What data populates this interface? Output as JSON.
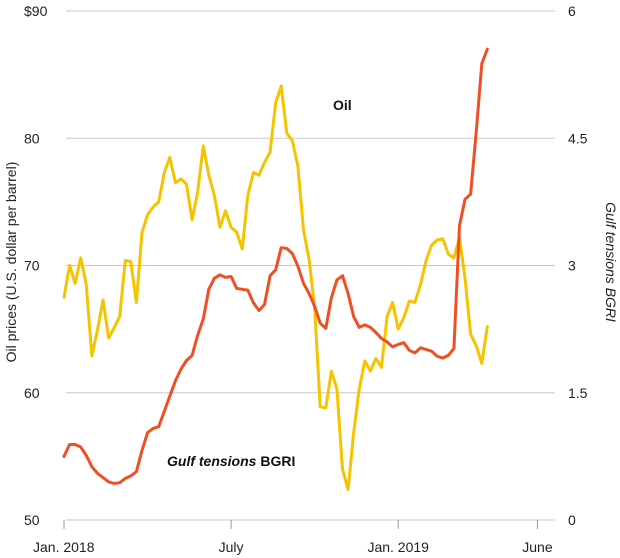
{
  "chart_data": {
    "type": "line",
    "x_unit": "month (1 = Jan. 2018)",
    "x_ticks": [
      {
        "x": 1,
        "label": "Jan. 2018"
      },
      {
        "x": 7,
        "label": "July"
      },
      {
        "x": 13,
        "label": "Jan. 2019"
      },
      {
        "x": 18,
        "label": "June"
      }
    ],
    "x_range": [
      1,
      18.3
    ],
    "left_axis": {
      "label": "Oil prices (U.S. dollar per barrel)",
      "range": [
        50,
        90
      ],
      "ticks": [
        {
          "value": 90,
          "label": "$90"
        },
        {
          "value": 80,
          "label": "80"
        },
        {
          "value": 70,
          "label": "70"
        },
        {
          "value": 60,
          "label": "60"
        },
        {
          "value": 50,
          "label": "50"
        }
      ]
    },
    "right_axis": {
      "label": "Gulf tensions BGRI",
      "range": [
        0,
        6
      ],
      "ticks": [
        {
          "value": 6,
          "label": "6"
        },
        {
          "value": 4.5,
          "label": "4.5"
        },
        {
          "value": 3,
          "label": "3"
        },
        {
          "value": 1.5,
          "label": "1.5"
        },
        {
          "value": 0,
          "label": "0"
        }
      ]
    },
    "grid": true,
    "series": [
      {
        "name": "Oil",
        "axis": "left",
        "color": "#f5c400",
        "points": [
          [
            1.0,
            67.5
          ],
          [
            1.2,
            70.0
          ],
          [
            1.4,
            68.6
          ],
          [
            1.6,
            70.6
          ],
          [
            1.8,
            68.5
          ],
          [
            2.0,
            62.9
          ],
          [
            2.2,
            64.9
          ],
          [
            2.4,
            67.3
          ],
          [
            2.6,
            64.3
          ],
          [
            2.8,
            65.1
          ],
          [
            3.0,
            66.0
          ],
          [
            3.2,
            70.4
          ],
          [
            3.4,
            70.3
          ],
          [
            3.6,
            67.1
          ],
          [
            3.8,
            72.6
          ],
          [
            4.0,
            74.0
          ],
          [
            4.2,
            74.6
          ],
          [
            4.4,
            75.0
          ],
          [
            4.6,
            77.3
          ],
          [
            4.8,
            78.5
          ],
          [
            5.0,
            76.5
          ],
          [
            5.2,
            76.8
          ],
          [
            5.4,
            76.4
          ],
          [
            5.6,
            73.6
          ],
          [
            5.8,
            75.8
          ],
          [
            6.0,
            79.4
          ],
          [
            6.2,
            77.1
          ],
          [
            6.4,
            75.5
          ],
          [
            6.6,
            73.0
          ],
          [
            6.8,
            74.3
          ],
          [
            7.0,
            73.0
          ],
          [
            7.2,
            72.6
          ],
          [
            7.4,
            71.3
          ],
          [
            7.6,
            75.5
          ],
          [
            7.8,
            77.3
          ],
          [
            8.0,
            77.1
          ],
          [
            8.2,
            78.1
          ],
          [
            8.4,
            78.9
          ],
          [
            8.6,
            82.8
          ],
          [
            8.8,
            84.1
          ],
          [
            9.0,
            80.4
          ],
          [
            9.2,
            79.8
          ],
          [
            9.4,
            77.8
          ],
          [
            9.6,
            72.8
          ],
          [
            9.8,
            70.5
          ],
          [
            10.0,
            66.7
          ],
          [
            10.2,
            58.9
          ],
          [
            10.4,
            58.8
          ],
          [
            10.6,
            61.7
          ],
          [
            10.8,
            60.3
          ],
          [
            11.0,
            54.0
          ],
          [
            11.2,
            52.4
          ],
          [
            11.4,
            56.8
          ],
          [
            11.6,
            60.3
          ],
          [
            11.8,
            62.5
          ],
          [
            12.0,
            61.7
          ],
          [
            12.2,
            62.7
          ],
          [
            12.4,
            62.0
          ],
          [
            12.6,
            66.0
          ],
          [
            12.8,
            67.1
          ],
          [
            13.0,
            65.0
          ],
          [
            13.2,
            65.9
          ],
          [
            13.4,
            67.2
          ],
          [
            13.6,
            67.1
          ],
          [
            13.8,
            68.5
          ],
          [
            14.0,
            70.4
          ],
          [
            14.2,
            71.6
          ],
          [
            14.4,
            72.0
          ],
          [
            14.6,
            72.1
          ],
          [
            14.8,
            70.9
          ],
          [
            15.0,
            70.6
          ],
          [
            15.2,
            72.2
          ],
          [
            15.4,
            69.0
          ],
          [
            15.6,
            64.6
          ],
          [
            15.8,
            63.7
          ],
          [
            16.0,
            62.3
          ],
          [
            16.2,
            65.2
          ]
        ]
      },
      {
        "name": "Gulf tensions BGRI",
        "axis": "right",
        "color": "#f04e23",
        "points": [
          [
            1.0,
            0.75
          ],
          [
            1.2,
            0.89
          ],
          [
            1.4,
            0.89
          ],
          [
            1.6,
            0.86
          ],
          [
            1.8,
            0.76
          ],
          [
            2.0,
            0.63
          ],
          [
            2.2,
            0.55
          ],
          [
            2.4,
            0.5
          ],
          [
            2.6,
            0.45
          ],
          [
            2.8,
            0.43
          ],
          [
            3.0,
            0.44
          ],
          [
            3.2,
            0.49
          ],
          [
            3.4,
            0.52
          ],
          [
            3.6,
            0.57
          ],
          [
            3.8,
            0.82
          ],
          [
            4.0,
            1.03
          ],
          [
            4.2,
            1.08
          ],
          [
            4.4,
            1.1
          ],
          [
            4.6,
            1.28
          ],
          [
            4.8,
            1.46
          ],
          [
            5.0,
            1.64
          ],
          [
            5.2,
            1.78
          ],
          [
            5.4,
            1.88
          ],
          [
            5.6,
            1.94
          ],
          [
            5.8,
            2.18
          ],
          [
            6.0,
            2.37
          ],
          [
            6.2,
            2.72
          ],
          [
            6.4,
            2.85
          ],
          [
            6.6,
            2.89
          ],
          [
            6.8,
            2.86
          ],
          [
            7.0,
            2.87
          ],
          [
            7.2,
            2.73
          ],
          [
            7.4,
            2.72
          ],
          [
            7.6,
            2.71
          ],
          [
            7.8,
            2.56
          ],
          [
            8.0,
            2.47
          ],
          [
            8.2,
            2.54
          ],
          [
            8.4,
            2.88
          ],
          [
            8.6,
            2.95
          ],
          [
            8.8,
            3.21
          ],
          [
            9.0,
            3.2
          ],
          [
            9.2,
            3.14
          ],
          [
            9.4,
            2.99
          ],
          [
            9.6,
            2.79
          ],
          [
            9.8,
            2.67
          ],
          [
            10.0,
            2.52
          ],
          [
            10.2,
            2.32
          ],
          [
            10.4,
            2.26
          ],
          [
            10.6,
            2.62
          ],
          [
            10.8,
            2.83
          ],
          [
            11.0,
            2.88
          ],
          [
            11.2,
            2.67
          ],
          [
            11.4,
            2.4
          ],
          [
            11.6,
            2.27
          ],
          [
            11.8,
            2.3
          ],
          [
            12.0,
            2.27
          ],
          [
            12.2,
            2.21
          ],
          [
            12.4,
            2.14
          ],
          [
            12.6,
            2.1
          ],
          [
            12.8,
            2.04
          ],
          [
            13.0,
            2.07
          ],
          [
            13.2,
            2.09
          ],
          [
            13.4,
            2.0
          ],
          [
            13.6,
            1.97
          ],
          [
            13.8,
            2.03
          ],
          [
            14.0,
            2.01
          ],
          [
            14.2,
            1.99
          ],
          [
            14.4,
            1.93
          ],
          [
            14.6,
            1.91
          ],
          [
            14.8,
            1.94
          ],
          [
            15.0,
            2.02
          ],
          [
            15.2,
            3.47
          ],
          [
            15.4,
            3.78
          ],
          [
            15.6,
            3.84
          ],
          [
            15.8,
            4.57
          ],
          [
            16.0,
            5.38
          ],
          [
            16.2,
            5.55
          ]
        ]
      }
    ],
    "annotations": [
      {
        "text": "Oil",
        "series": "Oil"
      },
      {
        "text": "Gulf tensions BGRI",
        "series": "Gulf tensions BGRI"
      }
    ],
    "colors": {
      "grid": "#c8c8c8",
      "text": "#222222",
      "axis": "#999999"
    }
  }
}
